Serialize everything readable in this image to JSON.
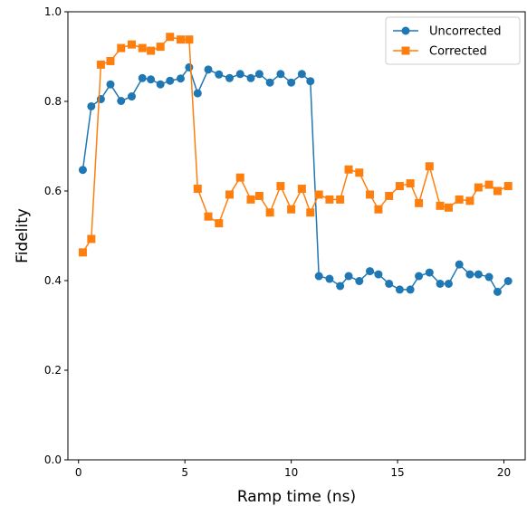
{
  "chart_data": {
    "type": "line",
    "xlabel": "Ramp time (ns)",
    "ylabel": "Fidelity",
    "xlim": [
      -0.5,
      21
    ],
    "ylim": [
      0.0,
      1.0
    ],
    "xticks": [
      0,
      5,
      10,
      15,
      20
    ],
    "yticks": [
      0.0,
      0.2,
      0.4,
      0.6,
      0.8,
      1.0
    ],
    "xtick_labels": [
      "0",
      "5",
      "10",
      "15",
      "20"
    ],
    "ytick_labels": [
      "0.0",
      "0.2",
      "0.4",
      "0.6",
      "0.8",
      "1.0"
    ],
    "grid": false,
    "legend_position": "top-right",
    "x": [
      0.2,
      0.6,
      1.05,
      1.5,
      2.0,
      2.5,
      3.0,
      3.4,
      3.85,
      4.3,
      4.8,
      5.2,
      5.6,
      6.1,
      6.6,
      7.1,
      7.6,
      8.1,
      8.5,
      9.0,
      9.5,
      10.0,
      10.5,
      10.9,
      11.3,
      11.8,
      12.3,
      12.7,
      13.2,
      13.7,
      14.1,
      14.6,
      15.1,
      15.6,
      16.0,
      16.5,
      17.0,
      17.4,
      17.9,
      18.4,
      18.8,
      19.3,
      19.7,
      20.2
    ],
    "series": [
      {
        "name": "Uncorrected",
        "color": "#1f77b4",
        "marker": "circle",
        "values": [
          0.647,
          0.789,
          0.805,
          0.838,
          0.801,
          0.811,
          0.852,
          0.849,
          0.838,
          0.846,
          0.851,
          0.876,
          0.818,
          0.871,
          0.86,
          0.852,
          0.861,
          0.852,
          0.861,
          0.842,
          0.861,
          0.842,
          0.861,
          0.845,
          0.41,
          0.404,
          0.388,
          0.41,
          0.399,
          0.421,
          0.414,
          0.393,
          0.38,
          0.38,
          0.41,
          0.418,
          0.393,
          0.393,
          0.436,
          0.414,
          0.414,
          0.408,
          0.375,
          0.399
        ]
      },
      {
        "name": "Corrected",
        "color": "#ff7f0e",
        "marker": "square",
        "values": [
          0.463,
          0.493,
          0.882,
          0.89,
          0.919,
          0.927,
          0.919,
          0.913,
          0.922,
          0.944,
          0.938,
          0.938,
          0.605,
          0.543,
          0.528,
          0.592,
          0.63,
          0.581,
          0.589,
          0.552,
          0.611,
          0.559,
          0.605,
          0.552,
          0.592,
          0.581,
          0.581,
          0.648,
          0.641,
          0.592,
          0.559,
          0.589,
          0.611,
          0.617,
          0.573,
          0.655,
          0.567,
          0.563,
          0.581,
          0.578,
          0.608,
          0.614,
          0.6,
          0.611
        ]
      }
    ]
  }
}
